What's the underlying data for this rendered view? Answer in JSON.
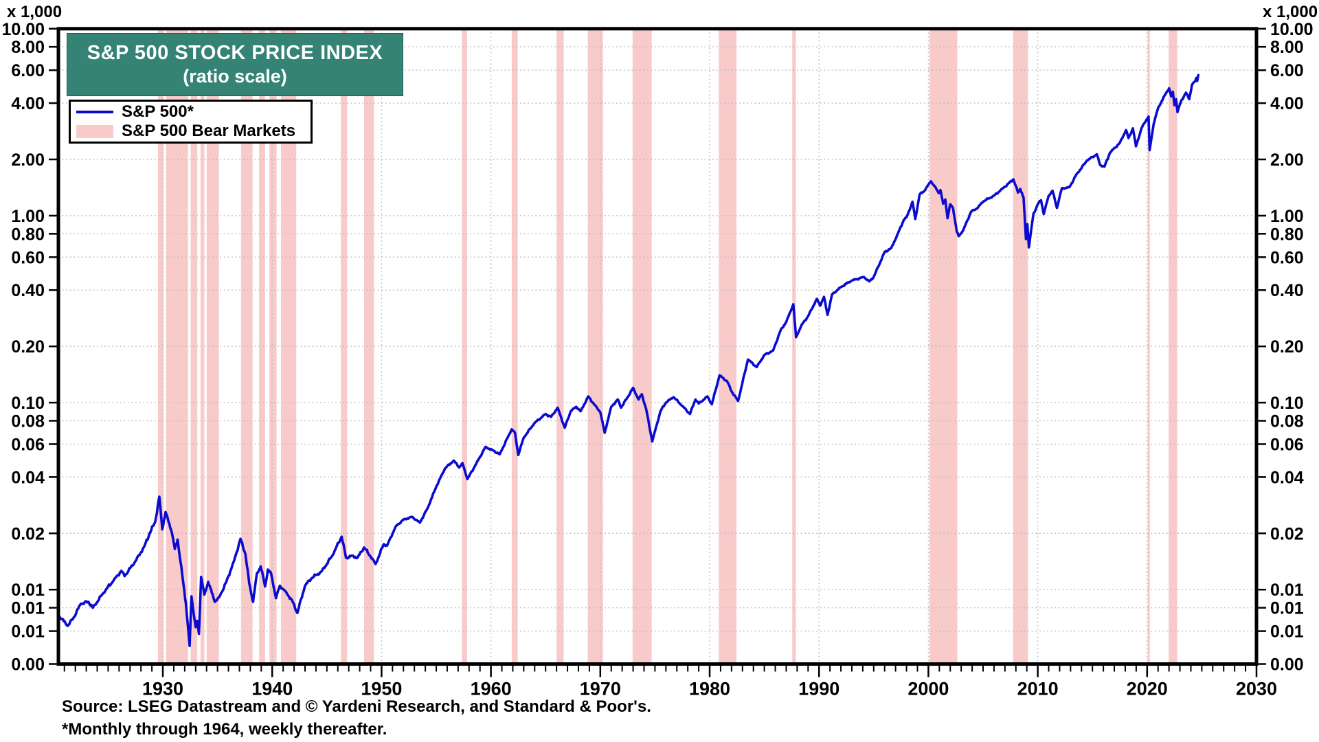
{
  "chart_data": {
    "type": "line",
    "title": "S&P 500 STOCK PRICE INDEX",
    "subtitle": "(ratio scale)",
    "y_unit": "x 1,000",
    "source": "Source: LSEG Datastream and © Yardeni Research, and Standard & Poor's.",
    "footnote": "*Monthly through 1964, weekly thereafter.",
    "legend": [
      {
        "label": "S&P 500*",
        "type": "line",
        "color": "#0b0bd0"
      },
      {
        "label": "S&P 500 Bear Markets",
        "type": "band",
        "color": "#f8caca"
      }
    ],
    "x_start": 1920.45,
    "x_end": 2030,
    "y_top": 10,
    "y_bottom": 0.004,
    "y_ticks": [
      {
        "v": 10,
        "label": "10.00"
      },
      {
        "v": 8,
        "label": "8.00"
      },
      {
        "v": 6,
        "label": "6.00"
      },
      {
        "v": 4,
        "label": "4.00"
      },
      {
        "v": 2,
        "label": "2.00"
      },
      {
        "v": 1,
        "label": "1.00"
      },
      {
        "v": 0.8,
        "label": "0.80"
      },
      {
        "v": 0.6,
        "label": "0.60"
      },
      {
        "v": 0.4,
        "label": "0.40"
      },
      {
        "v": 0.2,
        "label": "0.20"
      },
      {
        "v": 0.1,
        "label": "0.10"
      },
      {
        "v": 0.08,
        "label": "0.08"
      },
      {
        "v": 0.06,
        "label": "0.06"
      },
      {
        "v": 0.04,
        "label": "0.04"
      },
      {
        "v": 0.02,
        "label": "0.02"
      },
      {
        "v": 0.01,
        "label": "0.01"
      },
      {
        "v": 0.008,
        "label": "0.01"
      },
      {
        "v": 0.006,
        "label": "0.01"
      },
      {
        "v": 0.004,
        "label": "0.00"
      }
    ],
    "x_tick_labels": [
      "1930",
      "1940",
      "1950",
      "1960",
      "1970",
      "1980",
      "1990",
      "2000",
      "2010",
      "2020",
      "2030"
    ],
    "x_minor_tick_step": 1,
    "grid": {
      "horizontal": true,
      "vertical_decades": true,
      "style": "dotted",
      "color": "#bdbdbd"
    },
    "bear_markets": [
      [
        1929.55,
        1930.06
      ],
      [
        1930.3,
        1932.3
      ],
      [
        1932.55,
        1933.15
      ],
      [
        1933.45,
        1933.8
      ],
      [
        1934.0,
        1935.12
      ],
      [
        1937.15,
        1938.2
      ],
      [
        1938.8,
        1939.35
      ],
      [
        1939.75,
        1940.4
      ],
      [
        1940.8,
        1942.2
      ],
      [
        1946.28,
        1946.85
      ],
      [
        1948.4,
        1949.3
      ],
      [
        1957.35,
        1957.82
      ],
      [
        1961.9,
        1962.45
      ],
      [
        1966.0,
        1966.65
      ],
      [
        1968.85,
        1970.25
      ],
      [
        1972.95,
        1974.7
      ],
      [
        1980.83,
        1982.45
      ],
      [
        1987.55,
        1987.88
      ],
      [
        2000.1,
        2002.65
      ],
      [
        2007.75,
        2009.1
      ],
      [
        2020.05,
        2020.25
      ],
      [
        2021.97,
        2022.75
      ]
    ],
    "series": {
      "name": "S&P 500*",
      "color": "#0b0bd0",
      "points": [
        [
          1920.45,
          0.0073
        ],
        [
          1921.3,
          0.0064
        ],
        [
          1921.8,
          0.007
        ],
        [
          1922.5,
          0.0084
        ],
        [
          1923.2,
          0.0086
        ],
        [
          1923.6,
          0.008
        ],
        [
          1924.5,
          0.0095
        ],
        [
          1925.5,
          0.0112
        ],
        [
          1926.2,
          0.0126
        ],
        [
          1926.5,
          0.0118
        ],
        [
          1927.5,
          0.0142
        ],
        [
          1928.3,
          0.017
        ],
        [
          1928.8,
          0.02
        ],
        [
          1929.3,
          0.023
        ],
        [
          1929.68,
          0.0314
        ],
        [
          1929.95,
          0.021
        ],
        [
          1930.25,
          0.026
        ],
        [
          1930.8,
          0.0205
        ],
        [
          1931.1,
          0.0165
        ],
        [
          1931.35,
          0.0185
        ],
        [
          1931.9,
          0.0105
        ],
        [
          1932.1,
          0.0085
        ],
        [
          1932.45,
          0.005
        ],
        [
          1932.62,
          0.0092
        ],
        [
          1933.0,
          0.0063
        ],
        [
          1933.15,
          0.0068
        ],
        [
          1933.3,
          0.0058
        ],
        [
          1933.5,
          0.0117
        ],
        [
          1933.8,
          0.0094
        ],
        [
          1934.15,
          0.011
        ],
        [
          1934.75,
          0.0086
        ],
        [
          1935.15,
          0.0091
        ],
        [
          1935.8,
          0.011
        ],
        [
          1936.5,
          0.0142
        ],
        [
          1937.1,
          0.0187
        ],
        [
          1937.55,
          0.0155
        ],
        [
          1937.9,
          0.0108
        ],
        [
          1938.25,
          0.0086
        ],
        [
          1938.6,
          0.0122
        ],
        [
          1938.95,
          0.0133
        ],
        [
          1939.35,
          0.0104
        ],
        [
          1939.6,
          0.0128
        ],
        [
          1939.9,
          0.0122
        ],
        [
          1940.35,
          0.009
        ],
        [
          1940.7,
          0.0105
        ],
        [
          1941.2,
          0.0098
        ],
        [
          1941.8,
          0.0088
        ],
        [
          1942.3,
          0.0075
        ],
        [
          1943.0,
          0.0105
        ],
        [
          1943.6,
          0.0115
        ],
        [
          1944.5,
          0.0125
        ],
        [
          1945.5,
          0.0152
        ],
        [
          1946.35,
          0.0192
        ],
        [
          1946.75,
          0.0148
        ],
        [
          1947.3,
          0.0152
        ],
        [
          1947.8,
          0.0148
        ],
        [
          1948.4,
          0.0168
        ],
        [
          1949.0,
          0.015
        ],
        [
          1949.45,
          0.0137
        ],
        [
          1950.2,
          0.0175
        ],
        [
          1950.5,
          0.0172
        ],
        [
          1951.3,
          0.0218
        ],
        [
          1952.0,
          0.0237
        ],
        [
          1952.8,
          0.0245
        ],
        [
          1953.5,
          0.0228
        ],
        [
          1954.2,
          0.0272
        ],
        [
          1955.0,
          0.0355
        ],
        [
          1955.8,
          0.0445
        ],
        [
          1956.6,
          0.049
        ],
        [
          1957.1,
          0.045
        ],
        [
          1957.4,
          0.0475
        ],
        [
          1957.85,
          0.039
        ],
        [
          1958.6,
          0.0465
        ],
        [
          1959.5,
          0.058
        ],
        [
          1960.2,
          0.0555
        ],
        [
          1960.8,
          0.053
        ],
        [
          1961.9,
          0.072
        ],
        [
          1962.2,
          0.069
        ],
        [
          1962.5,
          0.0525
        ],
        [
          1963.0,
          0.065
        ],
        [
          1964.0,
          0.078
        ],
        [
          1965.0,
          0.087
        ],
        [
          1965.5,
          0.084
        ],
        [
          1966.1,
          0.094
        ],
        [
          1966.75,
          0.0735
        ],
        [
          1967.3,
          0.09
        ],
        [
          1967.8,
          0.095
        ],
        [
          1968.2,
          0.09
        ],
        [
          1968.9,
          0.108
        ],
        [
          1969.5,
          0.097
        ],
        [
          1970.0,
          0.089
        ],
        [
          1970.4,
          0.069
        ],
        [
          1971.0,
          0.095
        ],
        [
          1971.6,
          0.104
        ],
        [
          1971.9,
          0.094
        ],
        [
          1972.5,
          0.107
        ],
        [
          1973.0,
          0.12
        ],
        [
          1973.5,
          0.104
        ],
        [
          1973.8,
          0.111
        ],
        [
          1974.2,
          0.092
        ],
        [
          1974.75,
          0.062
        ],
        [
          1975.5,
          0.09
        ],
        [
          1976.0,
          0.1
        ],
        [
          1976.7,
          0.107
        ],
        [
          1977.5,
          0.096
        ],
        [
          1978.2,
          0.087
        ],
        [
          1978.7,
          0.104
        ],
        [
          1979.0,
          0.099
        ],
        [
          1979.8,
          0.108
        ],
        [
          1980.2,
          0.098
        ],
        [
          1980.9,
          0.14
        ],
        [
          1981.6,
          0.13
        ],
        [
          1982.0,
          0.115
        ],
        [
          1982.6,
          0.102
        ],
        [
          1983.5,
          0.17
        ],
        [
          1984.3,
          0.155
        ],
        [
          1985.0,
          0.18
        ],
        [
          1985.8,
          0.19
        ],
        [
          1986.5,
          0.245
        ],
        [
          1987.0,
          0.27
        ],
        [
          1987.65,
          0.336
        ],
        [
          1987.9,
          0.224
        ],
        [
          1988.4,
          0.26
        ],
        [
          1989.0,
          0.29
        ],
        [
          1989.8,
          0.359
        ],
        [
          1990.1,
          0.33
        ],
        [
          1990.45,
          0.368
        ],
        [
          1990.78,
          0.295
        ],
        [
          1991.2,
          0.38
        ],
        [
          1992.0,
          0.415
        ],
        [
          1993.0,
          0.45
        ],
        [
          1994.1,
          0.47
        ],
        [
          1994.6,
          0.445
        ],
        [
          1995.0,
          0.47
        ],
        [
          1996.0,
          0.64
        ],
        [
          1996.6,
          0.67
        ],
        [
          1997.2,
          0.8
        ],
        [
          1997.75,
          0.95
        ],
        [
          1998.0,
          0.98
        ],
        [
          1998.55,
          1.187
        ],
        [
          1998.8,
          0.96
        ],
        [
          1999.2,
          1.3
        ],
        [
          1999.6,
          1.35
        ],
        [
          2000.23,
          1.527
        ],
        [
          2000.6,
          1.43
        ],
        [
          2000.95,
          1.32
        ],
        [
          2001.1,
          1.37
        ],
        [
          2001.35,
          1.16
        ],
        [
          2001.55,
          1.22
        ],
        [
          2001.75,
          0.97
        ],
        [
          2002.0,
          1.15
        ],
        [
          2002.25,
          1.1
        ],
        [
          2002.6,
          0.82
        ],
        [
          2002.77,
          0.777
        ],
        [
          2003.2,
          0.84
        ],
        [
          2003.9,
          1.05
        ],
        [
          2004.5,
          1.1
        ],
        [
          2005.0,
          1.19
        ],
        [
          2006.0,
          1.28
        ],
        [
          2006.8,
          1.4
        ],
        [
          2007.4,
          1.5
        ],
        [
          2007.77,
          1.565
        ],
        [
          2008.2,
          1.33
        ],
        [
          2008.4,
          1.39
        ],
        [
          2008.7,
          1.25
        ],
        [
          2008.92,
          0.75
        ],
        [
          2009.05,
          0.9
        ],
        [
          2009.19,
          0.677
        ],
        [
          2009.6,
          1.02
        ],
        [
          2010.0,
          1.15
        ],
        [
          2010.3,
          1.21
        ],
        [
          2010.55,
          1.02
        ],
        [
          2011.0,
          1.28
        ],
        [
          2011.35,
          1.36
        ],
        [
          2011.75,
          1.1
        ],
        [
          2012.2,
          1.4
        ],
        [
          2012.9,
          1.42
        ],
        [
          2013.5,
          1.65
        ],
        [
          2014.5,
          1.97
        ],
        [
          2015.4,
          2.13
        ],
        [
          2015.7,
          1.87
        ],
        [
          2016.1,
          1.83
        ],
        [
          2016.6,
          2.17
        ],
        [
          2017.5,
          2.45
        ],
        [
          2018.07,
          2.87
        ],
        [
          2018.3,
          2.6
        ],
        [
          2018.7,
          2.93
        ],
        [
          2018.98,
          2.35
        ],
        [
          2019.5,
          2.95
        ],
        [
          2019.9,
          3.23
        ],
        [
          2020.13,
          3.39
        ],
        [
          2020.23,
          2.24
        ],
        [
          2020.6,
          3.1
        ],
        [
          2021.0,
          3.76
        ],
        [
          2021.6,
          4.4
        ],
        [
          2022.01,
          4.8
        ],
        [
          2022.2,
          4.35
        ],
        [
          2022.35,
          4.6
        ],
        [
          2022.5,
          3.9
        ],
        [
          2022.65,
          4.2
        ],
        [
          2022.78,
          3.58
        ],
        [
          2023.1,
          4.1
        ],
        [
          2023.55,
          4.55
        ],
        [
          2023.85,
          4.2
        ],
        [
          2024.1,
          5.0
        ],
        [
          2024.4,
          5.25
        ],
        [
          2024.5,
          5.46
        ],
        [
          2024.58,
          5.25
        ],
        [
          2024.68,
          5.65
        ]
      ]
    },
    "colors": {
      "line": "#0b0bd0",
      "band": "#f8caca",
      "title_bg": "#348374",
      "title_fg": "#ffffff",
      "axis": "#000000",
      "grid": "#bdbdbd"
    }
  }
}
